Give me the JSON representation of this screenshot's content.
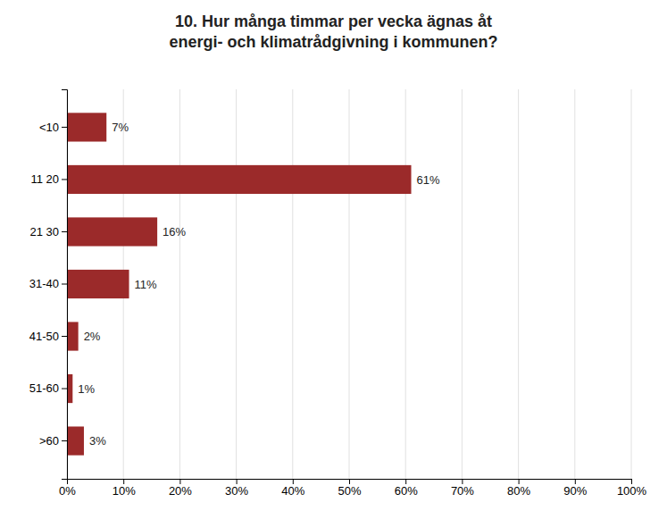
{
  "chart_data": {
    "type": "bar",
    "orientation": "horizontal",
    "title": "10. Hur många timmar per vecka ägnas åt\nenergi- och klimatrådgivning i kommunen?",
    "categories": [
      "<10",
      "11 20",
      "21 30",
      "31-40",
      "41-50",
      "51-60",
      ">60"
    ],
    "values": [
      7,
      61,
      16,
      11,
      2,
      1,
      3
    ],
    "value_labels": [
      "7%",
      "61%",
      "16%",
      "11%",
      "2%",
      "1%",
      "3%"
    ],
    "data_labels": true,
    "color": "#9b2a2a",
    "xlim": [
      0,
      100
    ],
    "xticks": [
      {
        "value": 0,
        "label": "0%"
      },
      {
        "value": 10,
        "label": "10%"
      },
      {
        "value": 20,
        "label": "20%"
      },
      {
        "value": 30,
        "label": "30%"
      },
      {
        "value": 40,
        "label": "40%"
      },
      {
        "value": 50,
        "label": "50%"
      },
      {
        "value": 60,
        "label": "60%"
      },
      {
        "value": 70,
        "label": "70%"
      },
      {
        "value": 80,
        "label": "80%"
      },
      {
        "value": 90,
        "label": "90%"
      },
      {
        "value": 100,
        "label": "100%"
      }
    ],
    "grid": true
  }
}
